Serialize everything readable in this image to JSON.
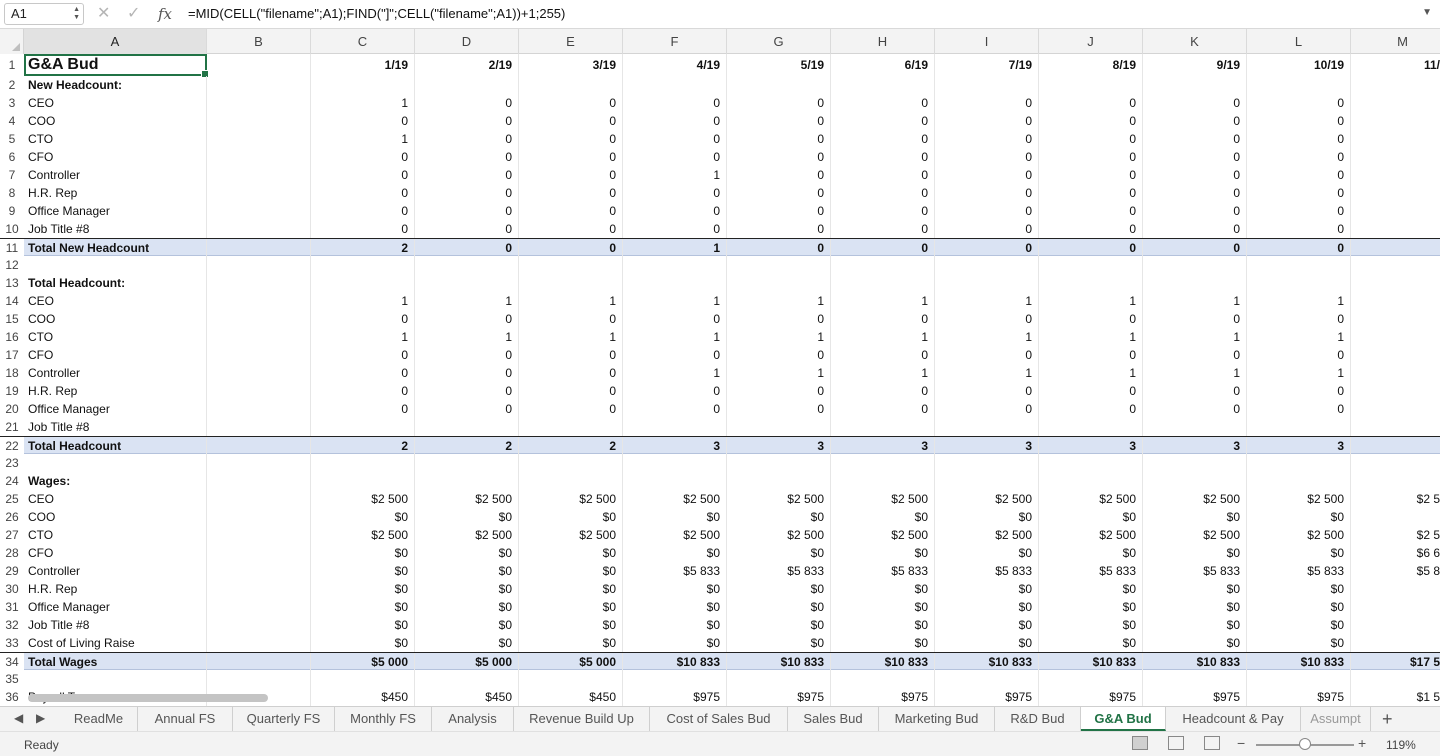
{
  "formula_bar": {
    "cell_ref": "A1",
    "fx": "fx",
    "formula": "=MID(CELL(\"filename\";A1);FIND(\"]\";CELL(\"filename\";A1))+1;255)"
  },
  "columns": [
    "A",
    "B",
    "C",
    "D",
    "E",
    "F",
    "G",
    "H",
    "I",
    "J",
    "K",
    "L",
    "M"
  ],
  "col_headers_row": [
    "1/19",
    "2/19",
    "3/19",
    "4/19",
    "5/19",
    "6/19",
    "7/19",
    "8/19",
    "9/19",
    "10/19",
    "11/19"
  ],
  "rows": [
    {
      "n": "1",
      "label": "G&A Bud",
      "vals": [
        "1/19",
        "2/19",
        "3/19",
        "4/19",
        "5/19",
        "6/19",
        "7/19",
        "8/19",
        "9/19",
        "10/19",
        "11/"
      ],
      "style": "title"
    },
    {
      "n": "2",
      "label": "New Headcount:",
      "vals": [],
      "style": "section"
    },
    {
      "n": "3",
      "label": "CEO",
      "vals": [
        "1",
        "0",
        "0",
        "0",
        "0",
        "0",
        "0",
        "0",
        "0",
        "0",
        ""
      ]
    },
    {
      "n": "4",
      "label": "COO",
      "vals": [
        "0",
        "0",
        "0",
        "0",
        "0",
        "0",
        "0",
        "0",
        "0",
        "0",
        ""
      ]
    },
    {
      "n": "5",
      "label": "CTO",
      "vals": [
        "1",
        "0",
        "0",
        "0",
        "0",
        "0",
        "0",
        "0",
        "0",
        "0",
        ""
      ]
    },
    {
      "n": "6",
      "label": "CFO",
      "vals": [
        "0",
        "0",
        "0",
        "0",
        "0",
        "0",
        "0",
        "0",
        "0",
        "0",
        ""
      ]
    },
    {
      "n": "7",
      "label": "Controller",
      "vals": [
        "0",
        "0",
        "0",
        "1",
        "0",
        "0",
        "0",
        "0",
        "0",
        "0",
        ""
      ]
    },
    {
      "n": "8",
      "label": "H.R. Rep",
      "vals": [
        "0",
        "0",
        "0",
        "0",
        "0",
        "0",
        "0",
        "0",
        "0",
        "0",
        ""
      ]
    },
    {
      "n": "9",
      "label": "Office Manager",
      "vals": [
        "0",
        "0",
        "0",
        "0",
        "0",
        "0",
        "0",
        "0",
        "0",
        "0",
        ""
      ]
    },
    {
      "n": "10",
      "label": "Job Title #8",
      "vals": [
        "0",
        "0",
        "0",
        "0",
        "0",
        "0",
        "0",
        "0",
        "0",
        "0",
        ""
      ]
    },
    {
      "n": "11",
      "label": "Total New Headcount",
      "vals": [
        "2",
        "0",
        "0",
        "1",
        "0",
        "0",
        "0",
        "0",
        "0",
        "0",
        ""
      ],
      "style": "total"
    },
    {
      "n": "12",
      "label": "",
      "vals": []
    },
    {
      "n": "13",
      "label": "Total Headcount:",
      "vals": [],
      "style": "section"
    },
    {
      "n": "14",
      "label": "CEO",
      "vals": [
        "1",
        "1",
        "1",
        "1",
        "1",
        "1",
        "1",
        "1",
        "1",
        "1",
        ""
      ]
    },
    {
      "n": "15",
      "label": "COO",
      "vals": [
        "0",
        "0",
        "0",
        "0",
        "0",
        "0",
        "0",
        "0",
        "0",
        "0",
        ""
      ]
    },
    {
      "n": "16",
      "label": "CTO",
      "vals": [
        "1",
        "1",
        "1",
        "1",
        "1",
        "1",
        "1",
        "1",
        "1",
        "1",
        ""
      ]
    },
    {
      "n": "17",
      "label": "CFO",
      "vals": [
        "0",
        "0",
        "0",
        "0",
        "0",
        "0",
        "0",
        "0",
        "0",
        "0",
        ""
      ]
    },
    {
      "n": "18",
      "label": "Controller",
      "vals": [
        "0",
        "0",
        "0",
        "1",
        "1",
        "1",
        "1",
        "1",
        "1",
        "1",
        ""
      ]
    },
    {
      "n": "19",
      "label": "H.R. Rep",
      "vals": [
        "0",
        "0",
        "0",
        "0",
        "0",
        "0",
        "0",
        "0",
        "0",
        "0",
        ""
      ]
    },
    {
      "n": "20",
      "label": "Office Manager",
      "vals": [
        "0",
        "0",
        "0",
        "0",
        "0",
        "0",
        "0",
        "0",
        "0",
        "0",
        ""
      ]
    },
    {
      "n": "21",
      "label": "Job Title #8",
      "vals": []
    },
    {
      "n": "22",
      "label": "Total Headcount",
      "vals": [
        "2",
        "2",
        "2",
        "3",
        "3",
        "3",
        "3",
        "3",
        "3",
        "3",
        ""
      ],
      "style": "total"
    },
    {
      "n": "23",
      "label": "",
      "vals": []
    },
    {
      "n": "24",
      "label": "Wages:",
      "vals": [],
      "style": "section"
    },
    {
      "n": "25",
      "label": "CEO",
      "vals": [
        "$2 500",
        "$2 500",
        "$2 500",
        "$2 500",
        "$2 500",
        "$2 500",
        "$2 500",
        "$2 500",
        "$2 500",
        "$2 500",
        "$2 5"
      ]
    },
    {
      "n": "26",
      "label": "COO",
      "vals": [
        "$0",
        "$0",
        "$0",
        "$0",
        "$0",
        "$0",
        "$0",
        "$0",
        "$0",
        "$0",
        ""
      ]
    },
    {
      "n": "27",
      "label": "CTO",
      "vals": [
        "$2 500",
        "$2 500",
        "$2 500",
        "$2 500",
        "$2 500",
        "$2 500",
        "$2 500",
        "$2 500",
        "$2 500",
        "$2 500",
        "$2 5"
      ]
    },
    {
      "n": "28",
      "label": "CFO",
      "vals": [
        "$0",
        "$0",
        "$0",
        "$0",
        "$0",
        "$0",
        "$0",
        "$0",
        "$0",
        "$0",
        "$6 6"
      ]
    },
    {
      "n": "29",
      "label": "Controller",
      "vals": [
        "$0",
        "$0",
        "$0",
        "$5 833",
        "$5 833",
        "$5 833",
        "$5 833",
        "$5 833",
        "$5 833",
        "$5 833",
        "$5 8"
      ]
    },
    {
      "n": "30",
      "label": "H.R. Rep",
      "vals": [
        "$0",
        "$0",
        "$0",
        "$0",
        "$0",
        "$0",
        "$0",
        "$0",
        "$0",
        "$0",
        ""
      ]
    },
    {
      "n": "31",
      "label": "Office Manager",
      "vals": [
        "$0",
        "$0",
        "$0",
        "$0",
        "$0",
        "$0",
        "$0",
        "$0",
        "$0",
        "$0",
        ""
      ]
    },
    {
      "n": "32",
      "label": "Job Title #8",
      "vals": [
        "$0",
        "$0",
        "$0",
        "$0",
        "$0",
        "$0",
        "$0",
        "$0",
        "$0",
        "$0",
        ""
      ]
    },
    {
      "n": "33",
      "label": "Cost of Living Raise",
      "vals": [
        "$0",
        "$0",
        "$0",
        "$0",
        "$0",
        "$0",
        "$0",
        "$0",
        "$0",
        "$0",
        ""
      ]
    },
    {
      "n": "34",
      "label": "Total Wages",
      "vals": [
        "$5 000",
        "$5 000",
        "$5 000",
        "$10 833",
        "$10 833",
        "$10 833",
        "$10 833",
        "$10 833",
        "$10 833",
        "$10 833",
        "$17 5"
      ],
      "style": "total"
    },
    {
      "n": "35",
      "label": "",
      "vals": []
    },
    {
      "n": "36",
      "label": "Payroll Tax",
      "vals": [
        "$450",
        "$450",
        "$450",
        "$975",
        "$975",
        "$975",
        "$975",
        "$975",
        "$975",
        "$975",
        "$1 5"
      ]
    }
  ],
  "tabs": [
    "ReadMe",
    "Annual FS",
    "Quarterly FS",
    "Monthly FS",
    "Analysis",
    "Revenue Build Up",
    "Cost of Sales Bud",
    "Sales Bud",
    "Marketing Bud",
    "R&D Bud",
    "G&A Bud",
    "Headcount & Pay",
    "Assumpt"
  ],
  "active_tab": "G&A Bud",
  "status": {
    "ready": "Ready",
    "zoom": "119%"
  },
  "colors": {
    "accent": "#217346",
    "total_row": "#dae3f3"
  }
}
